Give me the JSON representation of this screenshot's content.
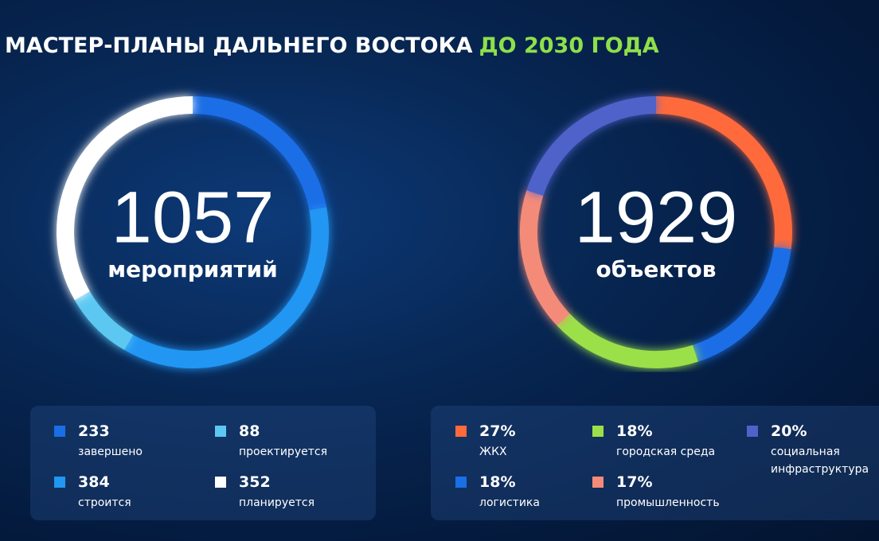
{
  "header": {
    "title": "МАСТЕР-ПЛАНЫ ДАЛЬНЕГО ВОСТОКА",
    "highlight": "ДО 2030 ГОДА"
  },
  "chart_data": [
    {
      "type": "donut",
      "total": "1057",
      "total_label": "мероприятий",
      "categories": [
        "завершено",
        "строится",
        "проектируется",
        "планируется"
      ],
      "values": [
        233,
        384,
        88,
        352
      ],
      "colors": [
        "#1a6ee6",
        "#2196f3",
        "#5cc8f2",
        "#ffffff"
      ]
    },
    {
      "type": "donut",
      "total": "1929",
      "total_label": "объектов",
      "categories": [
        "ЖКХ",
        "логистика",
        "городская среда",
        "промышленность",
        "социальная инфраструктура"
      ],
      "values": [
        27,
        18,
        18,
        17,
        20
      ],
      "value_labels": [
        "27%",
        "18%",
        "18%",
        "17%",
        "20%"
      ],
      "colors": [
        "#ff6a3d",
        "#1a6ee6",
        "#9be04a",
        "#f48b79",
        "#4f62c9"
      ]
    }
  ]
}
